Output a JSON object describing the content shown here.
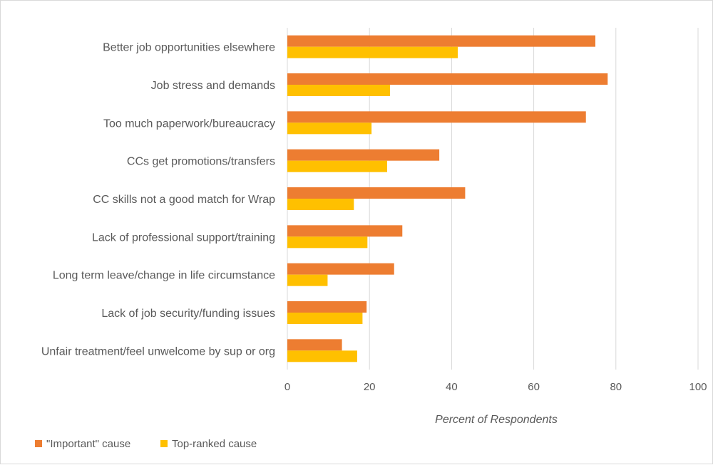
{
  "chart_data": {
    "type": "bar",
    "orientation": "horizontal",
    "categories": [
      "Better job opportunities elsewhere",
      "Job stress and demands",
      "Too much paperwork/bureaucracy",
      "CCs get promotions/transfers",
      "CC skills not a good match for Wrap",
      "Lack of professional support/training",
      "Long term leave/change in life circumstance",
      "Lack of job security/funding issues",
      "Unfair treatment/feel unwelcome by sup or org"
    ],
    "series": [
      {
        "name": "\"Important\" cause",
        "color": "#ED7D31",
        "values": [
          75,
          78,
          72.7,
          37,
          43.3,
          28,
          26,
          19.3,
          13.3
        ]
      },
      {
        "name": "Top-ranked cause",
        "color": "#FFC000",
        "values": [
          41.5,
          25,
          20.5,
          24.3,
          16.2,
          19.5,
          9.8,
          18.3,
          17
        ]
      }
    ],
    "xlabel": "Percent of Respondents",
    "ylabel": "",
    "xlim": [
      0,
      100
    ],
    "xticks": [
      0,
      20,
      40,
      60,
      80,
      100
    ],
    "grid": "vertical",
    "legend": "bottom-left"
  }
}
